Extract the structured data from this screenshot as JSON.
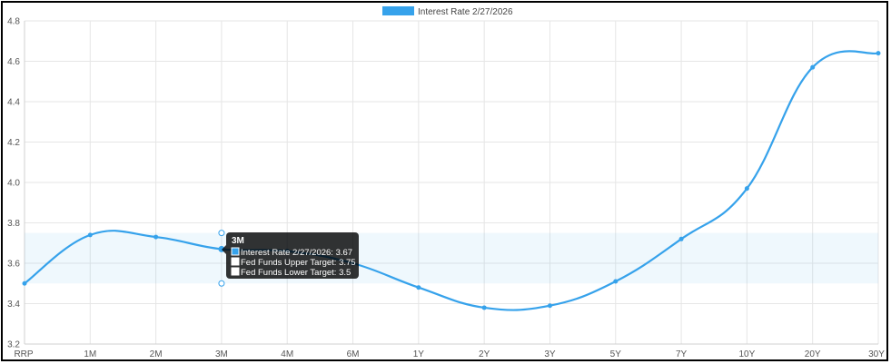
{
  "chart_data": {
    "type": "line",
    "title": "",
    "xlabel": "",
    "ylabel": "",
    "categories": [
      "RRP",
      "1M",
      "2M",
      "3M",
      "4M",
      "6M",
      "1Y",
      "2Y",
      "3Y",
      "5Y",
      "7Y",
      "10Y",
      "20Y",
      "30Y"
    ],
    "series": [
      {
        "name": "Interest Rate 2/27/2026",
        "color": "#36a2eb",
        "values": [
          3.5,
          3.74,
          3.73,
          3.67,
          3.66,
          3.6,
          3.48,
          3.38,
          3.39,
          3.51,
          3.72,
          3.97,
          4.57,
          4.64
        ]
      }
    ],
    "fed_funds_band": {
      "upper": 3.75,
      "lower": 3.5
    },
    "ylim": [
      3.2,
      4.8
    ],
    "yticks": [
      "3.2",
      "3.4",
      "3.6",
      "3.8",
      "4.0",
      "4.2",
      "4.4",
      "4.6",
      "4.8"
    ],
    "grid": true,
    "legend_position": "top",
    "legend": {
      "label": "Interest Rate 2/27/2026"
    },
    "tooltip": {
      "category_index": 3,
      "title": "3M",
      "lines": [
        "Interest Rate 2/27/2026: 3.67",
        "Fed Funds Upper Target: 3.75",
        "Fed Funds Lower Target: 3.5"
      ]
    }
  }
}
